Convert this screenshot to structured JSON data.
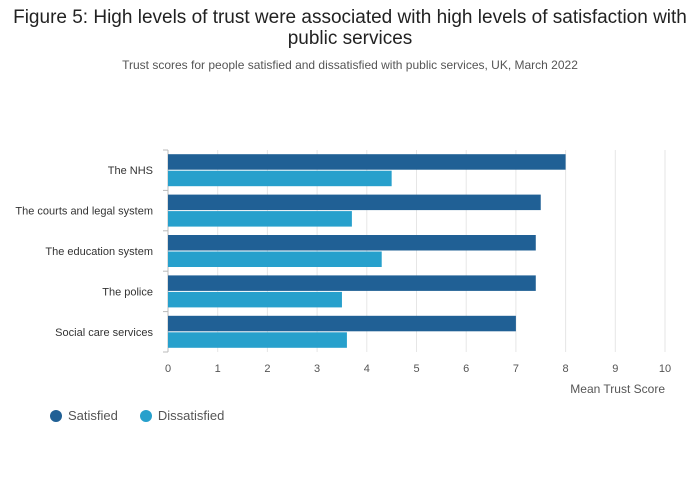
{
  "chart_data": {
    "type": "bar",
    "orientation": "horizontal",
    "title": "Figure 5: High levels of trust were associated with high levels of satisfaction with public services",
    "subtitle": "Trust scores for people satisfied and dissatisfied with public services, UK, March 2022",
    "categories": [
      "The NHS",
      "The courts and legal system",
      "The education system",
      "The police",
      "Social care services"
    ],
    "series": [
      {
        "name": "Satisfied",
        "color": "#206095",
        "values": [
          8.0,
          7.5,
          7.4,
          7.4,
          7.0
        ]
      },
      {
        "name": "Dissatisfied",
        "color": "#27a0cc",
        "values": [
          4.5,
          3.7,
          4.3,
          3.5,
          3.6
        ]
      }
    ],
    "xlabel": "Mean Trust Score",
    "xlim": [
      0,
      10
    ],
    "xticks": [
      "0",
      "1",
      "2",
      "3",
      "4",
      "5",
      "6",
      "7",
      "8",
      "9",
      "10"
    ],
    "grid": true,
    "legend_position": "bottom-left"
  }
}
